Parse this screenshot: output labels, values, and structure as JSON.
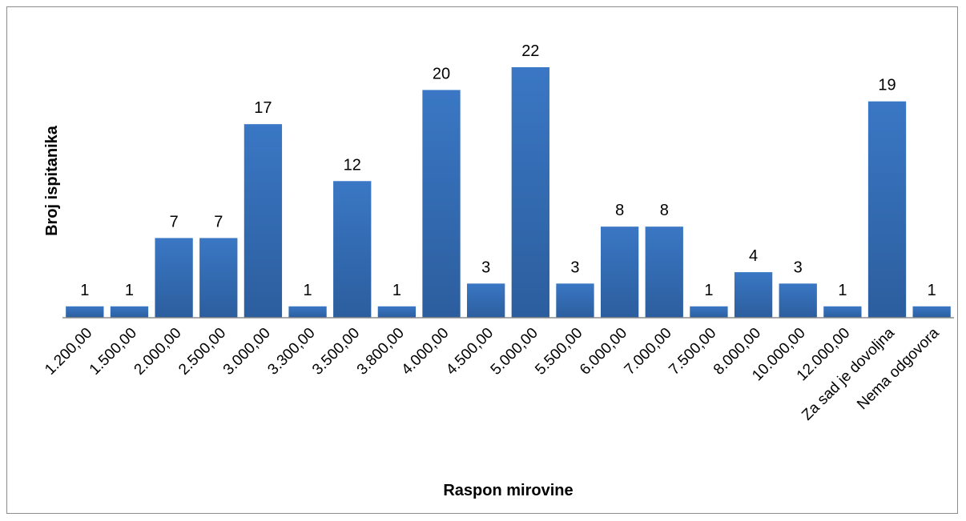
{
  "chart_data": {
    "type": "bar",
    "title": "",
    "xlabel": "Raspon mirovine",
    "ylabel": "Broj ispitanika",
    "categories": [
      "1.200,00",
      "1.500,00",
      "2.000,00",
      "2.500,00",
      "3.000,00",
      "3.300,00",
      "3.500,00",
      "3.800,00",
      "4.000,00",
      "4.500,00",
      "5.000,00",
      "5.500,00",
      "6.000,00",
      "7.000,00",
      "7.500,00",
      "8.000,00",
      "10.000,00",
      "12.000,00",
      "Za sad je dovoljna",
      "Nema odgovora"
    ],
    "values": [
      1,
      1,
      7,
      7,
      17,
      1,
      12,
      1,
      20,
      3,
      22,
      3,
      8,
      8,
      1,
      4,
      3,
      1,
      19,
      1
    ],
    "ylim": [
      0,
      22
    ],
    "grid": false,
    "legend": "none",
    "colors": {
      "bar": "#3a77c4",
      "bar_dark": "#2c5e9e",
      "axis": "#8c8c8c"
    }
  }
}
